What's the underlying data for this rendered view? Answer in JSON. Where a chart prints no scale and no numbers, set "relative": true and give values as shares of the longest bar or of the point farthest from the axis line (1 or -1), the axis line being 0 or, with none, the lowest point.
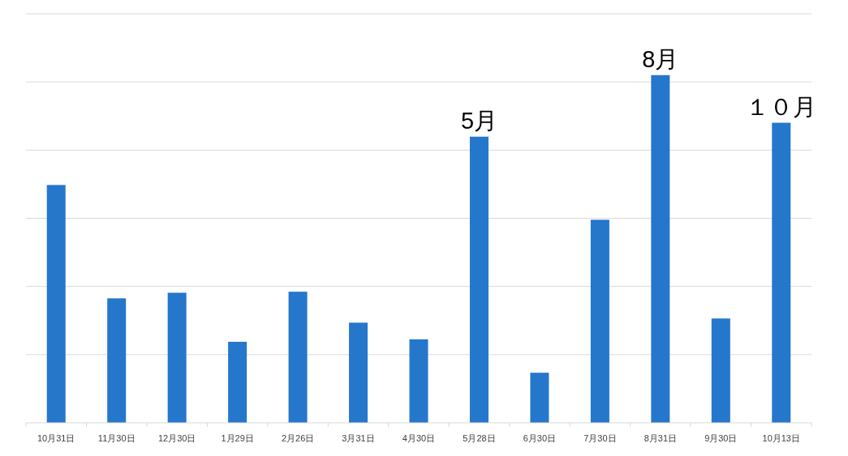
{
  "chart_data": {
    "type": "bar",
    "relative": true,
    "grid": "y",
    "color": "#2577cc",
    "categories": [
      "10月31日",
      "11月30日",
      "12月30日",
      "1月29日",
      "2月26日",
      "3月31日",
      "4月30日",
      "5月28日",
      "6月30日",
      "7月30日",
      "8月31日",
      "9月30日",
      "10月13日"
    ],
    "values": [
      0.684,
      0.358,
      0.374,
      0.233,
      0.377,
      0.288,
      0.24,
      0.823,
      0.144,
      0.584,
      1,
      0.3,
      0.863
    ],
    "annotations": [
      {
        "text": "5月",
        "x": "5月28日",
        "y": 0.823
      },
      {
        "text": "8月",
        "x": "8月31日",
        "y": 1
      },
      {
        "text": "１０月",
        "x": "10月13日",
        "y": 0.863
      }
    ]
  }
}
